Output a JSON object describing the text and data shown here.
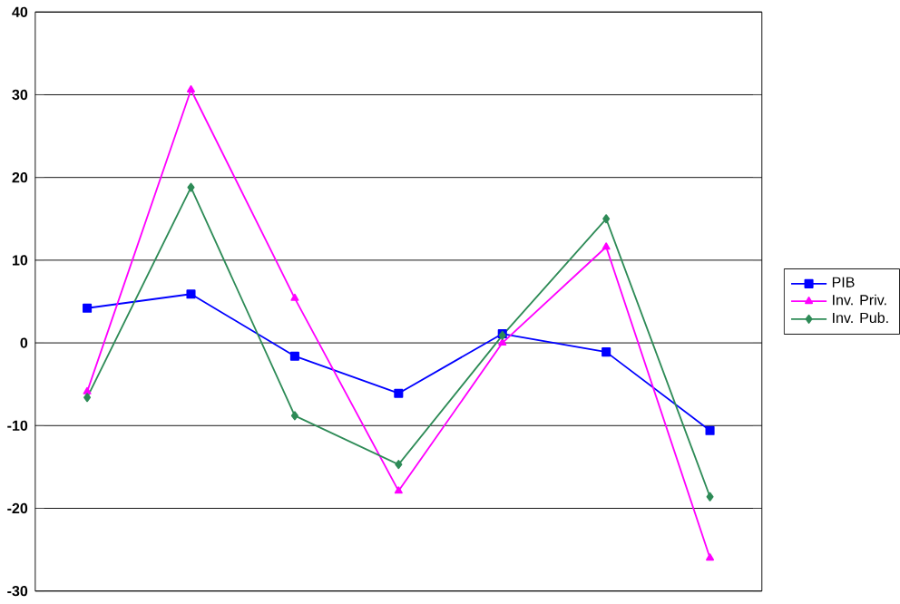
{
  "chart_data": {
    "type": "line",
    "categories": [
      null,
      null,
      null,
      null,
      null,
      null,
      null
    ],
    "series": [
      {
        "name": "PIB",
        "color": "#0000ff",
        "marker": "square",
        "values": [
          4.2,
          5.9,
          -1.6,
          -6.1,
          1.1,
          -1.1,
          -10.6
        ]
      },
      {
        "name": "Inv. Priv.",
        "color": "#ff00ff",
        "marker": "triangle",
        "values": [
          -5.9,
          30.6,
          5.4,
          -17.9,
          0,
          11.6,
          -26
        ]
      },
      {
        "name": "Inv. Pub.",
        "color": "#2e8b57",
        "marker": "diamond",
        "values": [
          -6.6,
          18.8,
          -8.8,
          -14.7,
          0.9,
          15,
          -18.6
        ]
      }
    ],
    "ylim": [
      -30,
      40
    ],
    "yticks": [
      -30,
      -20,
      -10,
      0,
      10,
      20,
      30,
      40
    ],
    "grid": "y",
    "legend": "right",
    "line_style": "solid"
  }
}
